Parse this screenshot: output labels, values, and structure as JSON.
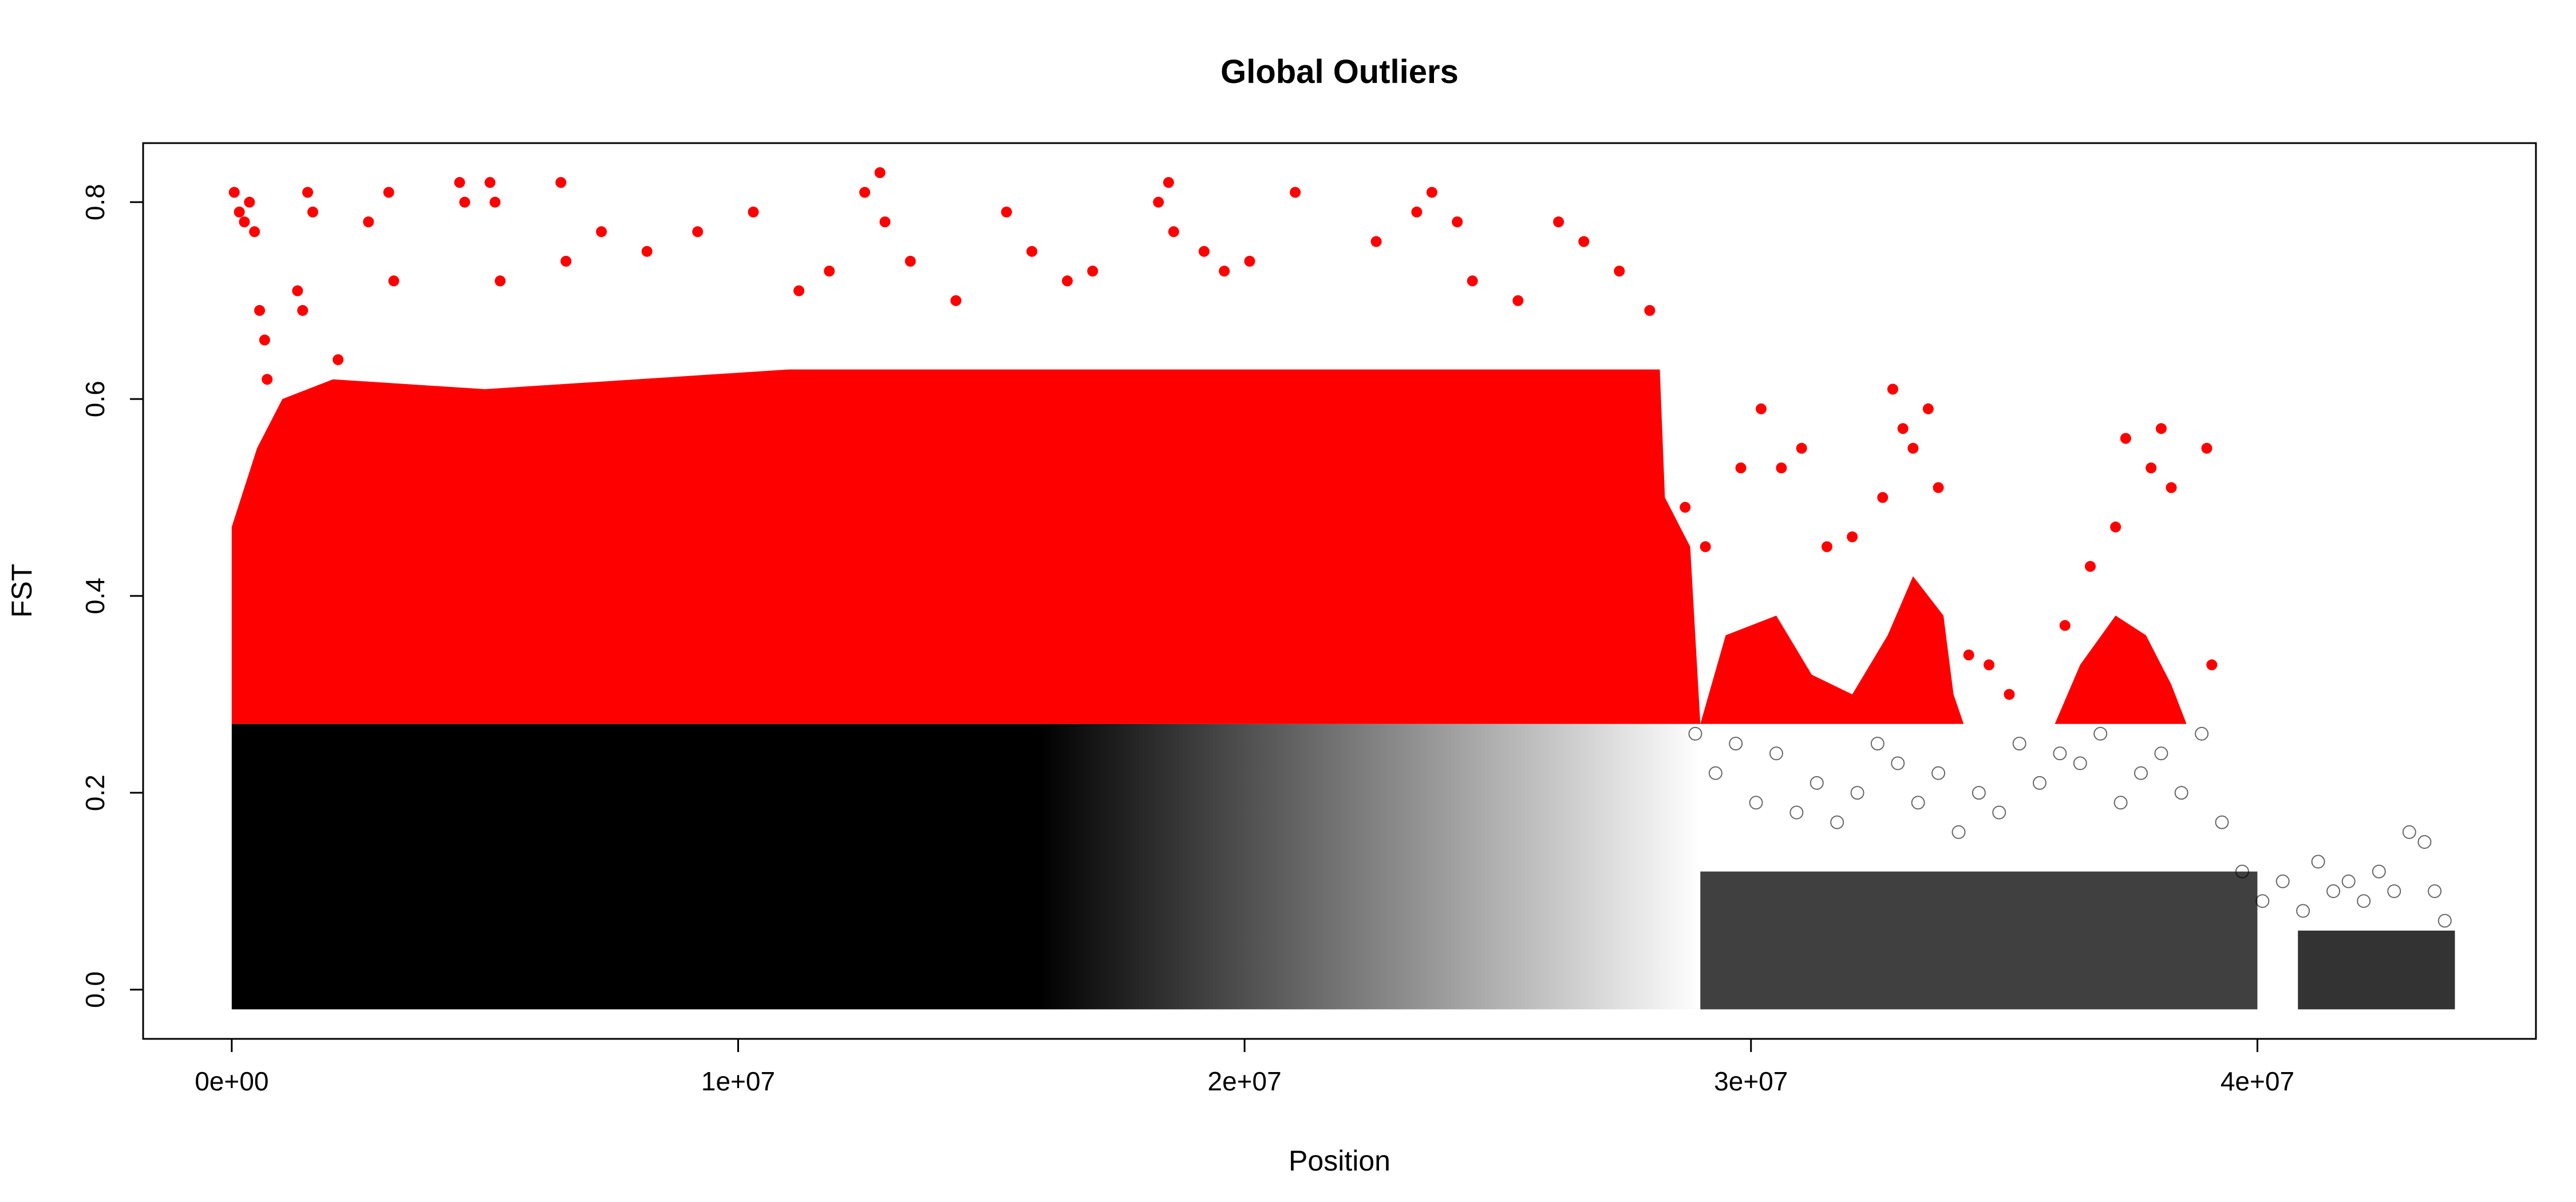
{
  "chart_data": {
    "type": "scatter",
    "title": "Global Outliers",
    "xlabel": "Position",
    "ylabel": "FST",
    "xlim": [
      -1750000,
      45500000
    ],
    "ylim": [
      -0.05,
      0.86
    ],
    "x_ticks": [
      {
        "value": 0,
        "label": "0e+00"
      },
      {
        "value": 10000000,
        "label": "1e+07"
      },
      {
        "value": 20000000,
        "label": "2e+07"
      },
      {
        "value": 30000000,
        "label": "3e+07"
      },
      {
        "value": 40000000,
        "label": "4e+07"
      }
    ],
    "y_ticks": [
      {
        "value": 0.0,
        "label": "0.0"
      },
      {
        "value": 0.2,
        "label": "0.2"
      },
      {
        "value": 0.4,
        "label": "0.4"
      },
      {
        "value": 0.6,
        "label": "0.6"
      },
      {
        "value": 0.8,
        "label": "0.8"
      }
    ],
    "grid": false,
    "legend": "none",
    "outlier_threshold": 0.27,
    "series": [
      {
        "role": "outliers",
        "color": "#ff0000",
        "marker": "filled-circle",
        "points": [
          [
            50000,
            0.81
          ],
          [
            150000,
            0.79
          ],
          [
            250000,
            0.78
          ],
          [
            350000,
            0.8
          ],
          [
            450000,
            0.77
          ],
          [
            550000,
            0.69
          ],
          [
            650000,
            0.66
          ],
          [
            700000,
            0.62
          ],
          [
            1300000,
            0.71
          ],
          [
            1400000,
            0.69
          ],
          [
            1500000,
            0.81
          ],
          [
            1600000,
            0.79
          ],
          [
            2100000,
            0.64
          ],
          [
            2700000,
            0.78
          ],
          [
            3100000,
            0.81
          ],
          [
            3200000,
            0.72
          ],
          [
            4500000,
            0.82
          ],
          [
            4600000,
            0.8
          ],
          [
            5100000,
            0.82
          ],
          [
            5200000,
            0.8
          ],
          [
            5300000,
            0.72
          ],
          [
            6500000,
            0.82
          ],
          [
            6600000,
            0.74
          ],
          [
            7300000,
            0.77
          ],
          [
            8200000,
            0.75
          ],
          [
            9200000,
            0.77
          ],
          [
            10300000,
            0.79
          ],
          [
            11200000,
            0.71
          ],
          [
            11800000,
            0.73
          ],
          [
            12500000,
            0.81
          ],
          [
            12800000,
            0.83
          ],
          [
            12900000,
            0.78
          ],
          [
            13400000,
            0.74
          ],
          [
            14300000,
            0.7
          ],
          [
            15300000,
            0.79
          ],
          [
            15800000,
            0.75
          ],
          [
            16500000,
            0.72
          ],
          [
            17000000,
            0.73
          ],
          [
            18300000,
            0.8
          ],
          [
            18500000,
            0.82
          ],
          [
            18600000,
            0.77
          ],
          [
            19200000,
            0.75
          ],
          [
            19600000,
            0.73
          ],
          [
            20100000,
            0.74
          ],
          [
            21000000,
            0.81
          ],
          [
            22600000,
            0.76
          ],
          [
            23400000,
            0.79
          ],
          [
            23700000,
            0.81
          ],
          [
            24200000,
            0.78
          ],
          [
            24500000,
            0.72
          ],
          [
            25400000,
            0.7
          ],
          [
            26200000,
            0.78
          ],
          [
            26700000,
            0.76
          ],
          [
            27400000,
            0.73
          ],
          [
            28000000,
            0.69
          ],
          [
            28700000,
            0.49
          ],
          [
            29100000,
            0.45
          ],
          [
            29800000,
            0.53
          ],
          [
            30200000,
            0.59
          ],
          [
            30600000,
            0.53
          ],
          [
            31000000,
            0.55
          ],
          [
            31500000,
            0.45
          ],
          [
            32000000,
            0.46
          ],
          [
            32600000,
            0.5
          ],
          [
            32800000,
            0.61
          ],
          [
            33000000,
            0.57
          ],
          [
            33200000,
            0.55
          ],
          [
            33500000,
            0.59
          ],
          [
            33700000,
            0.51
          ],
          [
            34300000,
            0.34
          ],
          [
            34700000,
            0.33
          ],
          [
            35100000,
            0.3
          ],
          [
            36200000,
            0.37
          ],
          [
            36700000,
            0.43
          ],
          [
            37200000,
            0.47
          ],
          [
            37400000,
            0.56
          ],
          [
            37900000,
            0.53
          ],
          [
            38100000,
            0.57
          ],
          [
            38300000,
            0.51
          ],
          [
            39000000,
            0.55
          ],
          [
            39100000,
            0.33
          ]
        ]
      },
      {
        "role": "non-outliers",
        "color": "#000000",
        "marker": "open-circle",
        "points": [
          [
            28900000,
            0.26
          ],
          [
            29300000,
            0.22
          ],
          [
            29700000,
            0.25
          ],
          [
            30100000,
            0.19
          ],
          [
            30500000,
            0.24
          ],
          [
            30900000,
            0.18
          ],
          [
            31300000,
            0.21
          ],
          [
            31700000,
            0.17
          ],
          [
            32100000,
            0.2
          ],
          [
            32500000,
            0.25
          ],
          [
            32900000,
            0.23
          ],
          [
            33300000,
            0.19
          ],
          [
            33700000,
            0.22
          ],
          [
            34100000,
            0.16
          ],
          [
            34500000,
            0.2
          ],
          [
            34900000,
            0.18
          ],
          [
            35300000,
            0.25
          ],
          [
            35700000,
            0.21
          ],
          [
            36100000,
            0.24
          ],
          [
            36500000,
            0.23
          ],
          [
            36900000,
            0.26
          ],
          [
            37300000,
            0.19
          ],
          [
            37700000,
            0.22
          ],
          [
            38100000,
            0.24
          ],
          [
            38500000,
            0.2
          ],
          [
            38900000,
            0.26
          ],
          [
            39300000,
            0.17
          ],
          [
            39700000,
            0.12
          ],
          [
            40100000,
            0.09
          ],
          [
            40500000,
            0.11
          ],
          [
            40900000,
            0.08
          ],
          [
            41200000,
            0.13
          ],
          [
            41500000,
            0.1
          ],
          [
            41800000,
            0.11
          ],
          [
            42100000,
            0.09
          ],
          [
            42400000,
            0.12
          ],
          [
            42700000,
            0.1
          ],
          [
            43000000,
            0.16
          ],
          [
            43300000,
            0.15
          ],
          [
            43500000,
            0.1
          ],
          [
            43700000,
            0.07
          ]
        ]
      }
    ]
  }
}
